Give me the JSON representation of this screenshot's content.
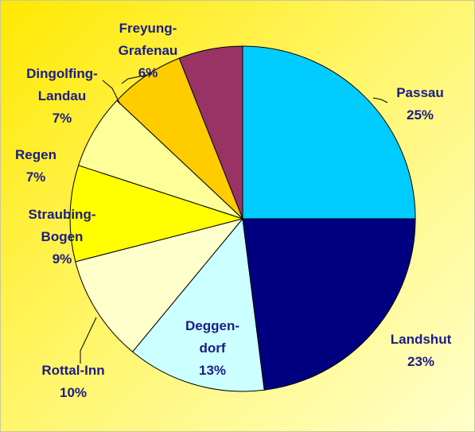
{
  "chart_data": {
    "type": "pie",
    "categories": [
      "Passau",
      "Landshut",
      "Deggen-dorf",
      "Rottal-Inn",
      "Straubing-Bogen",
      "Regen",
      "Dingolfing-Landau",
      "Freyung-Grafenau"
    ],
    "values": [
      25,
      23,
      13,
      10,
      9,
      7,
      7,
      6
    ],
    "value_labels": [
      "25%",
      "23%",
      "13%",
      "10%",
      "9%",
      "7%",
      "7%",
      "6%"
    ],
    "colors": [
      "#00ccff",
      "#000080",
      "#ccffff",
      "#ffffcc",
      "#ffff00",
      "#ffff99",
      "#ffcc00",
      "#993366"
    ]
  }
}
